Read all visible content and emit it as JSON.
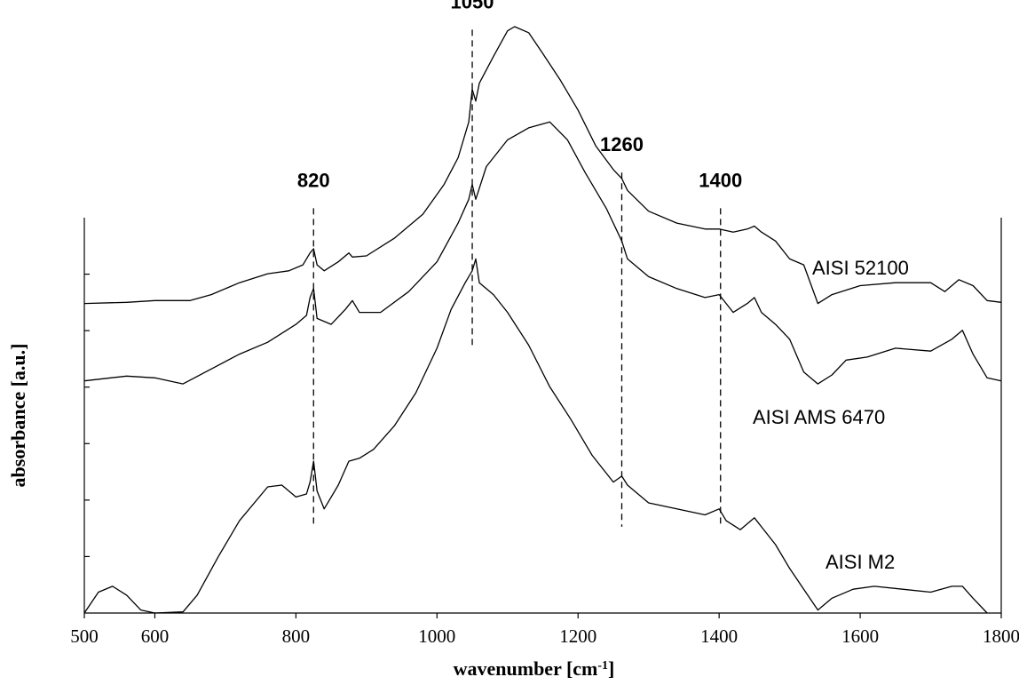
{
  "chart_data": {
    "type": "line",
    "xlabel": "wavenumber [cm",
    "xlabel_sup": "-1",
    "xlabel_end": "]",
    "ylabel": "absorbance [a.u.]",
    "xlim": [
      500,
      1800
    ],
    "ylim": [
      0,
      10
    ],
    "x_ticks": [
      "500",
      "600",
      "800",
      "1000",
      "1200",
      "1400",
      "1600",
      "1800"
    ],
    "y_ticks": [
      1,
      2,
      3,
      4,
      5,
      6
    ],
    "grid": false,
    "peak_markers": [
      {
        "label": "820",
        "x": 825,
        "y_top": 6.8,
        "y_bottom": 1.5
      },
      {
        "label": "1050",
        "x": 1050,
        "y_top": 9.8,
        "y_bottom": 4.5
      },
      {
        "label": "1260",
        "x": 1262,
        "y_top": 7.4,
        "y_bottom": 1.45
      },
      {
        "label": "1400",
        "x": 1402,
        "y_top": 6.8,
        "y_bottom": 1.45
      }
    ],
    "series": [
      {
        "name": "AISI 52100",
        "label_at": [
          1160,
          6.0
        ],
        "points": [
          [
            500,
            5.2
          ],
          [
            560,
            5.22
          ],
          [
            600,
            5.25
          ],
          [
            650,
            5.25
          ],
          [
            680,
            5.35
          ],
          [
            720,
            5.55
          ],
          [
            760,
            5.7
          ],
          [
            790,
            5.75
          ],
          [
            810,
            5.85
          ],
          [
            820,
            6.05
          ],
          [
            825,
            6.12
          ],
          [
            830,
            5.85
          ],
          [
            840,
            5.75
          ],
          [
            860,
            5.9
          ],
          [
            875,
            6.05
          ],
          [
            880,
            5.98
          ],
          [
            900,
            6.0
          ],
          [
            940,
            6.3
          ],
          [
            980,
            6.7
          ],
          [
            1010,
            7.2
          ],
          [
            1030,
            7.65
          ],
          [
            1045,
            8.25
          ],
          [
            1050,
            8.8
          ],
          [
            1055,
            8.6
          ],
          [
            1060,
            8.9
          ],
          [
            1080,
            9.35
          ],
          [
            1100,
            9.78
          ],
          [
            1110,
            9.85
          ],
          [
            1130,
            9.75
          ],
          [
            1150,
            9.4
          ],
          [
            1175,
            8.95
          ],
          [
            1200,
            8.45
          ],
          [
            1225,
            7.85
          ],
          [
            1250,
            7.45
          ],
          [
            1262,
            7.3
          ],
          [
            1270,
            7.1
          ],
          [
            1300,
            6.75
          ],
          [
            1340,
            6.55
          ],
          [
            1380,
            6.45
          ],
          [
            1400,
            6.45
          ],
          [
            1420,
            6.4
          ],
          [
            1440,
            6.45
          ],
          [
            1450,
            6.5
          ],
          [
            1460,
            6.4
          ],
          [
            1480,
            6.25
          ],
          [
            1500,
            5.95
          ],
          [
            1520,
            5.85
          ],
          [
            1540,
            5.2
          ],
          [
            1560,
            5.35
          ],
          [
            1600,
            5.5
          ],
          [
            1650,
            5.55
          ],
          [
            1700,
            5.55
          ],
          [
            1720,
            5.4
          ],
          [
            1740,
            5.6
          ],
          [
            1760,
            5.5
          ],
          [
            1780,
            5.25
          ],
          [
            1800,
            5.22
          ]
        ]
      },
      {
        "name": "AISI AMS 6470",
        "label_at": [
          1120,
          3.4
        ],
        "points": [
          [
            500,
            3.9
          ],
          [
            560,
            3.98
          ],
          [
            600,
            3.95
          ],
          [
            640,
            3.85
          ],
          [
            680,
            4.1
          ],
          [
            720,
            4.35
          ],
          [
            760,
            4.55
          ],
          [
            800,
            4.85
          ],
          [
            815,
            5.0
          ],
          [
            820,
            5.3
          ],
          [
            825,
            5.45
          ],
          [
            830,
            4.95
          ],
          [
            850,
            4.85
          ],
          [
            870,
            5.1
          ],
          [
            880,
            5.25
          ],
          [
            890,
            5.05
          ],
          [
            920,
            5.05
          ],
          [
            960,
            5.4
          ],
          [
            1000,
            5.9
          ],
          [
            1030,
            6.55
          ],
          [
            1045,
            6.95
          ],
          [
            1050,
            7.2
          ],
          [
            1055,
            6.95
          ],
          [
            1070,
            7.5
          ],
          [
            1100,
            7.95
          ],
          [
            1130,
            8.15
          ],
          [
            1160,
            8.25
          ],
          [
            1185,
            7.95
          ],
          [
            1210,
            7.4
          ],
          [
            1240,
            6.8
          ],
          [
            1262,
            6.25
          ],
          [
            1270,
            5.95
          ],
          [
            1300,
            5.65
          ],
          [
            1340,
            5.45
          ],
          [
            1380,
            5.3
          ],
          [
            1400,
            5.35
          ],
          [
            1420,
            5.05
          ],
          [
            1440,
            5.2
          ],
          [
            1450,
            5.3
          ],
          [
            1460,
            5.05
          ],
          [
            1480,
            4.85
          ],
          [
            1500,
            4.6
          ],
          [
            1520,
            4.05
          ],
          [
            1540,
            3.85
          ],
          [
            1560,
            4.0
          ],
          [
            1580,
            4.25
          ],
          [
            1610,
            4.3
          ],
          [
            1650,
            4.45
          ],
          [
            1700,
            4.4
          ],
          [
            1730,
            4.6
          ],
          [
            1745,
            4.75
          ],
          [
            1760,
            4.35
          ],
          [
            1780,
            3.95
          ],
          [
            1800,
            3.9
          ]
        ]
      },
      {
        "name": "AISI M2",
        "label_at": [
          1640,
          1.9
        ],
        "points": [
          [
            500,
            0.0
          ],
          [
            520,
            0.35
          ],
          [
            540,
            0.45
          ],
          [
            560,
            0.3
          ],
          [
            580,
            0.05
          ],
          [
            600,
            0.0
          ],
          [
            640,
            0.02
          ],
          [
            660,
            0.3
          ],
          [
            690,
            0.95
          ],
          [
            720,
            1.55
          ],
          [
            760,
            2.12
          ],
          [
            780,
            2.15
          ],
          [
            800,
            1.95
          ],
          [
            815,
            2.0
          ],
          [
            820,
            2.2
          ],
          [
            825,
            2.55
          ],
          [
            830,
            2.05
          ],
          [
            840,
            1.75
          ],
          [
            860,
            2.15
          ],
          [
            875,
            2.55
          ],
          [
            890,
            2.6
          ],
          [
            910,
            2.75
          ],
          [
            940,
            3.15
          ],
          [
            970,
            3.7
          ],
          [
            1000,
            4.45
          ],
          [
            1020,
            5.1
          ],
          [
            1040,
            5.55
          ],
          [
            1050,
            5.75
          ],
          [
            1055,
            5.95
          ],
          [
            1060,
            5.55
          ],
          [
            1080,
            5.35
          ],
          [
            1100,
            5.05
          ],
          [
            1130,
            4.5
          ],
          [
            1160,
            3.8
          ],
          [
            1190,
            3.25
          ],
          [
            1220,
            2.65
          ],
          [
            1250,
            2.2
          ],
          [
            1262,
            2.3
          ],
          [
            1270,
            2.15
          ],
          [
            1300,
            1.85
          ],
          [
            1340,
            1.75
          ],
          [
            1380,
            1.65
          ],
          [
            1400,
            1.75
          ],
          [
            1410,
            1.55
          ],
          [
            1430,
            1.4
          ],
          [
            1450,
            1.6
          ],
          [
            1460,
            1.45
          ],
          [
            1480,
            1.15
          ],
          [
            1500,
            0.75
          ],
          [
            1520,
            0.4
          ],
          [
            1540,
            0.05
          ],
          [
            1560,
            0.25
          ],
          [
            1590,
            0.4
          ],
          [
            1620,
            0.45
          ],
          [
            1660,
            0.4
          ],
          [
            1700,
            0.35
          ],
          [
            1730,
            0.45
          ],
          [
            1745,
            0.45
          ],
          [
            1760,
            0.25
          ],
          [
            1780,
            0.0
          ]
        ]
      }
    ]
  }
}
